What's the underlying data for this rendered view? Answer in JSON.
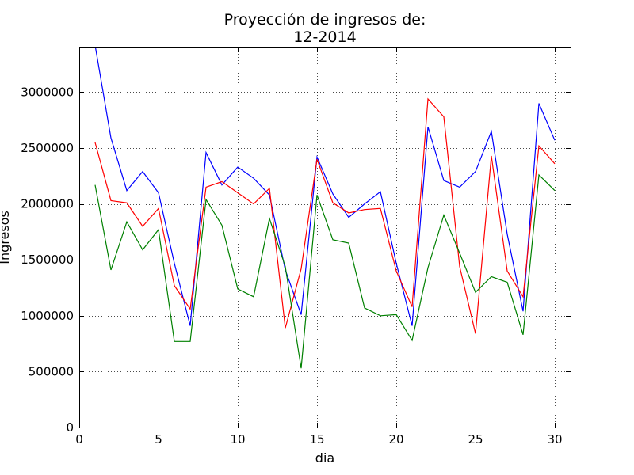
{
  "chart_data": {
    "type": "line",
    "title_line1": "Proyección de ingresos  de:",
    "title_line2": "12-2014",
    "xlabel": "dia",
    "ylabel": "Ingresos",
    "xlim": [
      0,
      31
    ],
    "ylim": [
      0,
      3400000
    ],
    "xticks": [
      0,
      5,
      10,
      15,
      20,
      25,
      30
    ],
    "yticks": [
      0,
      500000,
      1000000,
      1500000,
      2000000,
      2500000,
      3000000
    ],
    "grid": true,
    "x": [
      1,
      2,
      3,
      4,
      5,
      6,
      7,
      8,
      9,
      10,
      11,
      12,
      13,
      14,
      15,
      16,
      17,
      18,
      19,
      20,
      21,
      22,
      23,
      24,
      25,
      26,
      27,
      28,
      29,
      30
    ],
    "series": [
      {
        "color": "#0000ff",
        "values": [
          3420000,
          2590000,
          2120000,
          2290000,
          2100000,
          1470000,
          910000,
          2460000,
          2170000,
          2330000,
          2230000,
          2080000,
          1410000,
          1010000,
          2420000,
          2090000,
          1880000,
          2000000,
          2110000,
          1470000,
          910000,
          2690000,
          2210000,
          2150000,
          2290000,
          2650000,
          1730000,
          1040000,
          2900000,
          2570000
        ]
      },
      {
        "color": "#ff0000",
        "values": [
          2550000,
          2030000,
          2010000,
          1800000,
          1960000,
          1270000,
          1060000,
          2150000,
          2200000,
          2100000,
          2000000,
          2140000,
          890000,
          1420000,
          2400000,
          2010000,
          1920000,
          1950000,
          1960000,
          1400000,
          1080000,
          2940000,
          2780000,
          1440000,
          840000,
          2430000,
          1400000,
          1170000,
          2520000,
          2360000
        ]
      },
      {
        "color": "#008000",
        "values": [
          2170000,
          1410000,
          1840000,
          1590000,
          1770000,
          770000,
          770000,
          2040000,
          1810000,
          1240000,
          1170000,
          1870000,
          1440000,
          530000,
          2080000,
          1680000,
          1650000,
          1070000,
          1000000,
          1010000,
          780000,
          1430000,
          1900000,
          1560000,
          1210000,
          1350000,
          1300000,
          830000,
          2260000,
          2120000
        ]
      }
    ]
  }
}
